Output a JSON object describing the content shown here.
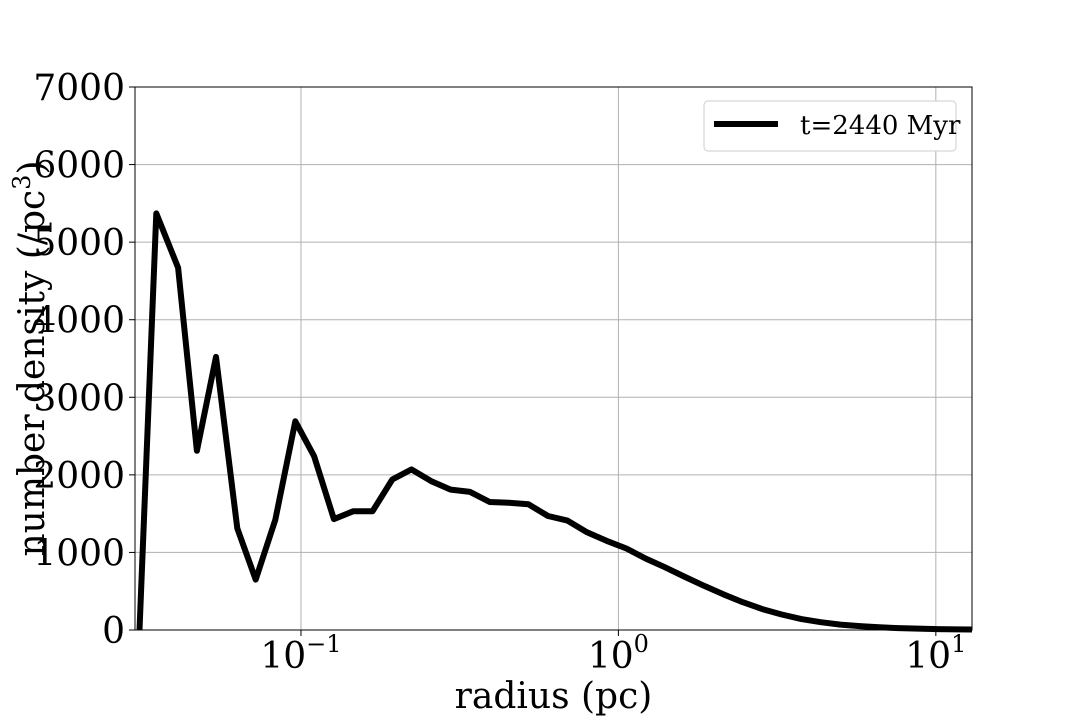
{
  "chart_data": {
    "type": "line",
    "xscale": "log",
    "xlim": [
      0.03,
      13
    ],
    "ylim": [
      0,
      7000
    ],
    "xlabel": "radius (pc)",
    "ylabel_main": "number density (/pc",
    "ylabel_sup": "3",
    "ylabel_close": ")",
    "grid": true,
    "legend_position": "top-right",
    "xticks": [
      {
        "value": 0.1,
        "base": "10",
        "exp": "−1"
      },
      {
        "value": 1,
        "base": "10",
        "exp": "0"
      },
      {
        "value": 10,
        "base": "10",
        "exp": "1"
      }
    ],
    "yticks": [
      0,
      1000,
      2000,
      3000,
      4000,
      5000,
      6000,
      7000
    ],
    "yticklabels": [
      "0",
      "1000",
      "2000",
      "3000",
      "4000",
      "5000",
      "6000",
      "7000"
    ],
    "series": [
      {
        "name": "t=2440 Myr",
        "color": "#000000",
        "x": [
          0.031,
          0.035,
          0.041,
          0.047,
          0.054,
          0.063,
          0.072,
          0.083,
          0.096,
          0.11,
          0.127,
          0.146,
          0.168,
          0.194,
          0.223,
          0.257,
          0.296,
          0.341,
          0.393,
          0.452,
          0.521,
          0.6,
          0.691,
          0.796,
          0.917,
          1.06,
          1.22,
          1.4,
          1.61,
          1.86,
          2.14,
          2.46,
          2.84,
          3.27,
          3.77,
          4.34,
          5.0,
          5.76,
          6.63,
          7.64,
          8.8,
          10.1,
          11.7,
          13.0
        ],
        "y": [
          0,
          5370,
          4670,
          2310,
          3520,
          1310,
          650,
          1420,
          2690,
          2240,
          1430,
          1530,
          1530,
          1940,
          2070,
          1920,
          1810,
          1780,
          1650,
          1640,
          1620,
          1470,
          1410,
          1260,
          1150,
          1050,
          920,
          810,
          690,
          570,
          460,
          360,
          270,
          200,
          140,
          100,
          70,
          50,
          35,
          25,
          18,
          12,
          8,
          6
        ]
      }
    ]
  }
}
